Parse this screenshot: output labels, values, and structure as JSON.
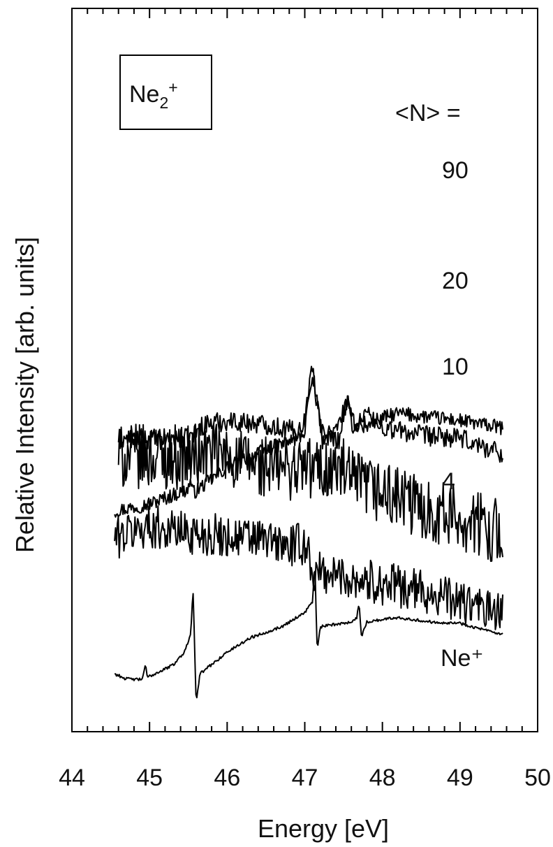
{
  "chart_data": {
    "type": "line",
    "xlabel": "Energy [eV]",
    "ylabel": "Relative Intensity [arb. units]",
    "xlim": [
      44,
      50
    ],
    "ylim": [
      0,
      1
    ],
    "x_ticks": [
      "44",
      "45",
      "46",
      "47",
      "48",
      "49",
      "50"
    ],
    "legend_box": {
      "base": "Ne",
      "sub": "2",
      "sup": "+"
    },
    "n_header": "<N> =",
    "series": [
      {
        "name": "90",
        "noise": 0.01,
        "x_start": 44.55,
        "x_end": 49.55,
        "points": [
          [
            44.55,
            0.305
          ],
          [
            45.0,
            0.315
          ],
          [
            45.5,
            0.335
          ],
          [
            45.52,
            0.35
          ],
          [
            45.56,
            0.33
          ],
          [
            46.0,
            0.365
          ],
          [
            46.5,
            0.39
          ],
          [
            46.9,
            0.405
          ],
          [
            47.0,
            0.415
          ],
          [
            47.05,
            0.47
          ],
          [
            47.1,
            0.505
          ],
          [
            47.15,
            0.46
          ],
          [
            47.22,
            0.415
          ],
          [
            47.4,
            0.415
          ],
          [
            47.5,
            0.445
          ],
          [
            47.55,
            0.455
          ],
          [
            47.62,
            0.42
          ],
          [
            47.7,
            0.425
          ],
          [
            47.8,
            0.445
          ],
          [
            47.9,
            0.43
          ],
          [
            48.2,
            0.44
          ],
          [
            48.6,
            0.435
          ],
          [
            49.0,
            0.43
          ],
          [
            49.55,
            0.42
          ]
        ]
      },
      {
        "name": "20",
        "noise": 0.014,
        "x_start": 44.6,
        "x_end": 49.55,
        "points": [
          [
            44.6,
            0.405
          ],
          [
            45.5,
            0.405
          ],
          [
            45.7,
            0.425
          ],
          [
            46.0,
            0.43
          ],
          [
            46.5,
            0.425
          ],
          [
            46.9,
            0.415
          ],
          [
            47.0,
            0.43
          ],
          [
            47.05,
            0.47
          ],
          [
            47.1,
            0.495
          ],
          [
            47.15,
            0.46
          ],
          [
            47.22,
            0.405
          ],
          [
            47.45,
            0.405
          ],
          [
            47.5,
            0.44
          ],
          [
            47.55,
            0.455
          ],
          [
            47.62,
            0.43
          ],
          [
            47.8,
            0.425
          ],
          [
            48.5,
            0.41
          ],
          [
            49.0,
            0.405
          ],
          [
            49.55,
            0.385
          ]
        ]
      },
      {
        "name": "10",
        "noise": 0.045,
        "x_start": 44.6,
        "x_end": 49.55,
        "points": [
          [
            44.6,
            0.38
          ],
          [
            45.5,
            0.38
          ],
          [
            45.8,
            0.385
          ],
          [
            46.5,
            0.365
          ],
          [
            47.0,
            0.365
          ],
          [
            47.5,
            0.36
          ],
          [
            47.6,
            0.345
          ],
          [
            48.0,
            0.33
          ],
          [
            48.5,
            0.31
          ],
          [
            49.0,
            0.295
          ],
          [
            49.55,
            0.275
          ]
        ]
      },
      {
        "name": "4",
        "noise": 0.03,
        "x_start": 44.55,
        "x_end": 49.55,
        "points": [
          [
            44.55,
            0.268
          ],
          [
            45.0,
            0.285
          ],
          [
            45.5,
            0.275
          ],
          [
            46.0,
            0.27
          ],
          [
            46.5,
            0.265
          ],
          [
            46.8,
            0.255
          ],
          [
            47.0,
            0.26
          ],
          [
            47.05,
            0.245
          ],
          [
            47.12,
            0.215
          ],
          [
            47.2,
            0.22
          ],
          [
            47.5,
            0.215
          ],
          [
            48.0,
            0.205
          ],
          [
            48.5,
            0.195
          ],
          [
            49.0,
            0.18
          ],
          [
            49.55,
            0.16
          ]
        ]
      },
      {
        "name": "Ne⁺",
        "noise": 0.002,
        "x_start": 44.55,
        "x_end": 49.55,
        "points": [
          [
            44.55,
            0.08
          ],
          [
            44.7,
            0.073
          ],
          [
            44.9,
            0.072
          ],
          [
            44.95,
            0.092
          ],
          [
            44.97,
            0.075
          ],
          [
            45.3,
            0.092
          ],
          [
            45.45,
            0.11
          ],
          [
            45.53,
            0.135
          ],
          [
            45.56,
            0.2
          ],
          [
            45.6,
            0.04
          ],
          [
            45.65,
            0.08
          ],
          [
            46.0,
            0.11
          ],
          [
            46.3,
            0.13
          ],
          [
            46.7,
            0.145
          ],
          [
            47.0,
            0.165
          ],
          [
            47.1,
            0.18
          ],
          [
            47.13,
            0.235
          ],
          [
            47.16,
            0.11
          ],
          [
            47.2,
            0.145
          ],
          [
            47.6,
            0.152
          ],
          [
            47.67,
            0.157
          ],
          [
            47.7,
            0.18
          ],
          [
            47.73,
            0.13
          ],
          [
            47.8,
            0.152
          ],
          [
            48.2,
            0.158
          ],
          [
            48.6,
            0.152
          ],
          [
            49.0,
            0.15
          ],
          [
            49.5,
            0.135
          ]
        ]
      }
    ]
  }
}
